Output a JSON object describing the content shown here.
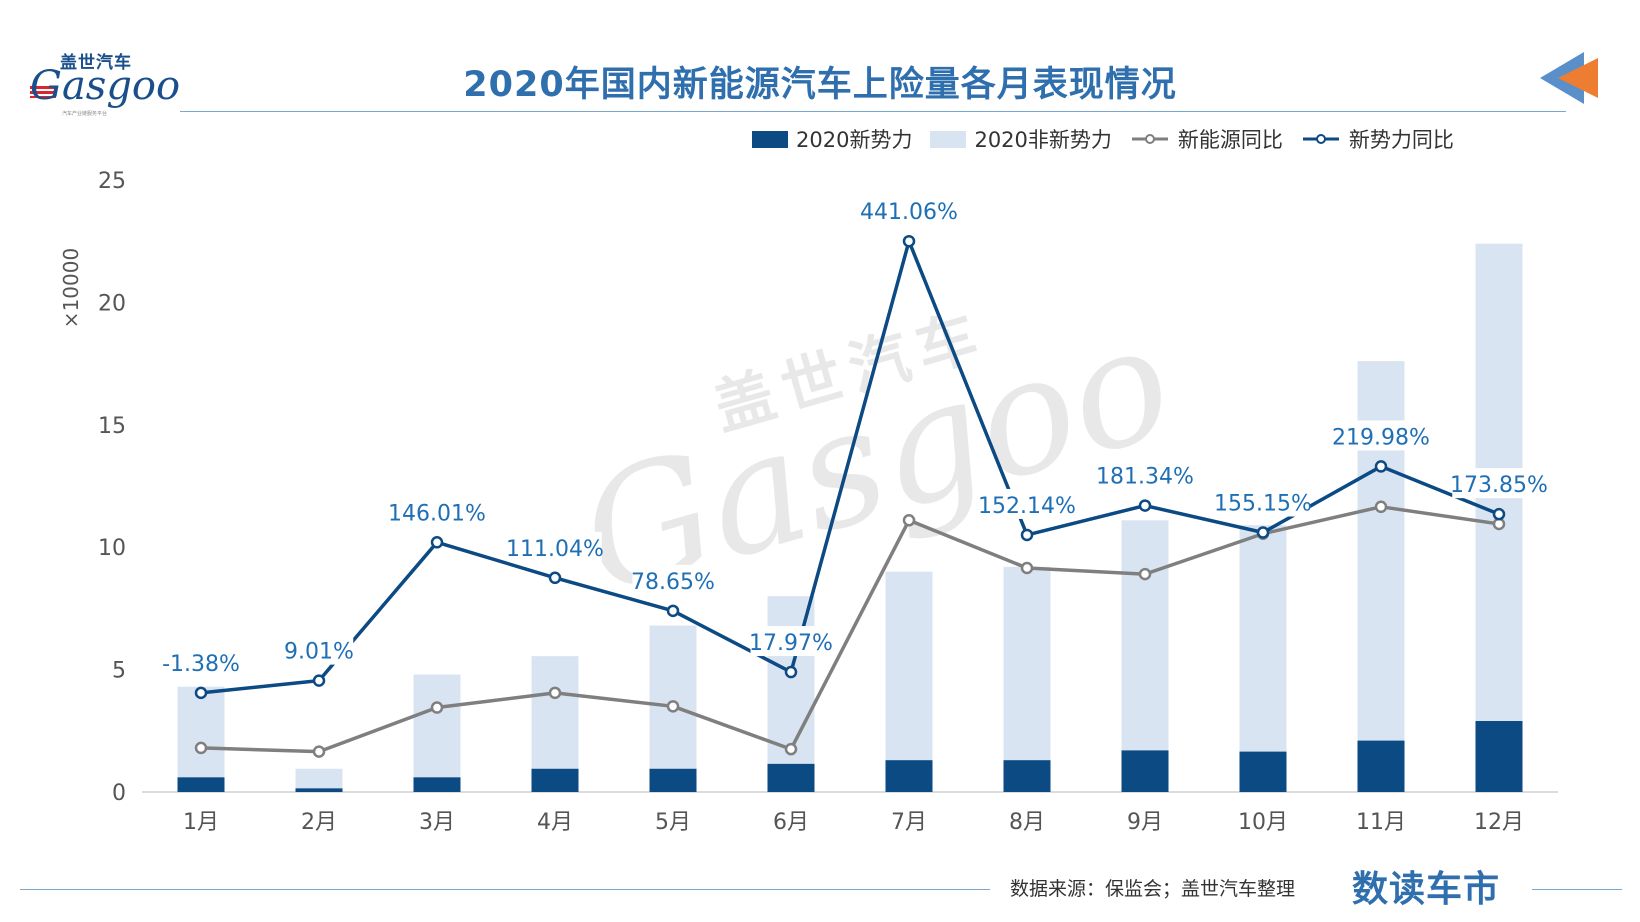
{
  "logo": {
    "name_cn": "盖世汽车",
    "name_en": "Gasgoo",
    "tagline": "汽车产业链服务平台"
  },
  "title": "2020年国内新能源汽车上险量各月表现情况",
  "footer": {
    "source": "数据来源：保监会；盖世汽车整理",
    "brand": "数读车市"
  },
  "watermark": {
    "cn": "盖世汽车",
    "en": "Gasgoo"
  },
  "colors": {
    "new_forces_bar": "#0c4a84",
    "non_new_forces_bar": "#d9e4f2",
    "nev_yoy_line": "#7f7f7f",
    "new_forces_yoy_line": "#0c4a84",
    "data_label": "#1f6fb5",
    "title": "#2f6fae",
    "arrow_orange": "#ed7d31",
    "arrow_blue": "#5b8fc9"
  },
  "chart_data": {
    "type": "bar",
    "title": "2020年国内新能源汽车上险量各月表现情况",
    "ylabel": "×10000",
    "ylim": [
      0,
      25
    ],
    "yticks": [
      "0",
      "5",
      "10",
      "15",
      "20",
      "25"
    ],
    "categories": [
      "1月",
      "2月",
      "3月",
      "4月",
      "5月",
      "6月",
      "7月",
      "8月",
      "9月",
      "10月",
      "11月",
      "12月"
    ],
    "legend_position": "top-right",
    "grid": false,
    "series": [
      {
        "name": "2020新势力",
        "type": "bar",
        "stack": "total",
        "values": [
          0.6,
          0.15,
          0.6,
          0.95,
          0.95,
          1.15,
          1.3,
          1.3,
          1.7,
          1.65,
          2.1,
          2.9
        ]
      },
      {
        "name": "2020非新势力",
        "type": "bar",
        "stack": "total",
        "values": [
          3.7,
          0.8,
          4.2,
          4.6,
          5.85,
          6.85,
          7.7,
          7.9,
          9.4,
          9.25,
          15.5,
          19.5
        ]
      },
      {
        "name": "新能源同比",
        "type": "line",
        "values": [
          1.8,
          1.65,
          3.45,
          4.05,
          3.5,
          1.75,
          11.1,
          9.15,
          8.9,
          10.55,
          11.65,
          10.95
        ]
      },
      {
        "name": "新势力同比",
        "type": "line",
        "values": [
          4.05,
          4.55,
          10.2,
          8.75,
          7.4,
          4.9,
          22.5,
          10.5,
          11.7,
          10.6,
          13.3,
          11.35
        ],
        "labels": [
          "-1.38%",
          "9.01%",
          "146.01%",
          "111.04%",
          "78.65%",
          "17.97%",
          "441.06%",
          "152.14%",
          "181.34%",
          "155.15%",
          "219.98%",
          "173.85%"
        ]
      }
    ]
  }
}
